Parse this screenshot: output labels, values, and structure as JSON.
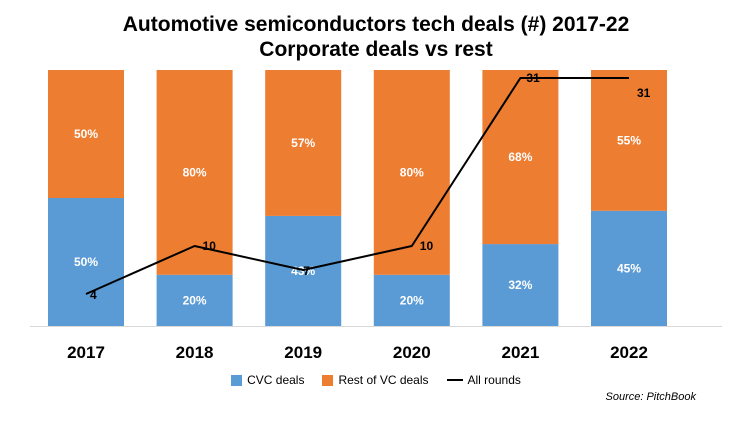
{
  "chart_data": {
    "type": "bar",
    "title": "Automotive semiconductors tech deals (#) 2017-22",
    "subtitle": "Corporate deals vs rest",
    "categories": [
      "2017",
      "2018",
      "2019",
      "2020",
      "2021",
      "2022"
    ],
    "stacked": true,
    "percent_stacked": true,
    "series": [
      {
        "name": "CVC deals",
        "type": "bar",
        "color": "#5B9BD5",
        "values": [
          50,
          20,
          43,
          20,
          32,
          45
        ],
        "labels": [
          "50%",
          "20%",
          "43%",
          "20%",
          "32%",
          "45%"
        ]
      },
      {
        "name": "Rest of VC deals",
        "type": "bar",
        "color": "#ED7D31",
        "values": [
          50,
          80,
          57,
          80,
          68,
          55
        ],
        "labels": [
          "50%",
          "80%",
          "57%",
          "80%",
          "68%",
          "55%"
        ]
      },
      {
        "name": "All rounds",
        "type": "line",
        "color": "#000000",
        "values": [
          4,
          10,
          7,
          10,
          31,
          31
        ],
        "labels": [
          "4",
          "10",
          "7",
          "10",
          "31",
          "31"
        ]
      }
    ],
    "bar_ylim": [
      0,
      100
    ],
    "line_ylim": [
      0,
      32
    ],
    "grid": false,
    "legend_position": "bottom"
  },
  "source": "Source: PitchBook"
}
